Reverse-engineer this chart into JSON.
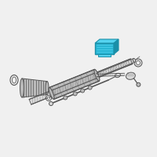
{
  "bg_color": "#f0f0f0",
  "line_color": "#555555",
  "light_line": "#888888",
  "fill_light": "#d8d8d8",
  "fill_mid": "#bbbbbb",
  "highlight_blue": "#29b6d4",
  "highlight_blue_dark": "#1a8fa8",
  "highlight_blue_top": "#55d4f0",
  "white": "#ffffff",
  "figsize": [
    2.0,
    2.0
  ],
  "dpi": 100
}
